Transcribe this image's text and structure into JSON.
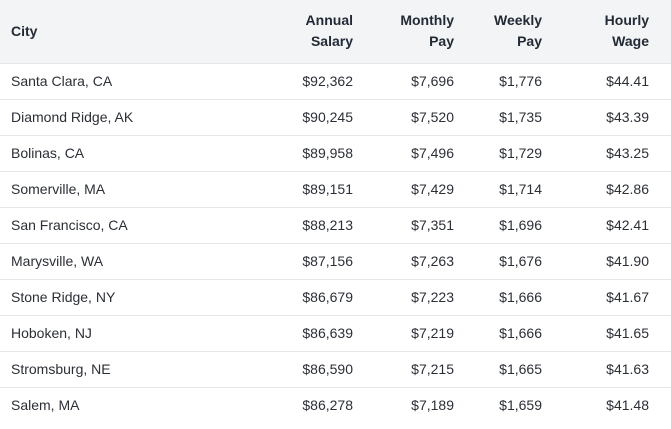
{
  "table": {
    "headers": {
      "city": "City",
      "annual_l1": "Annual",
      "annual_l2": "Salary",
      "monthly_l1": "Monthly",
      "monthly_l2": "Pay",
      "weekly_l1": "Weekly",
      "weekly_l2": "Pay",
      "hourly_l1": "Hourly",
      "hourly_l2": "Wage"
    },
    "rows": [
      {
        "city": "Santa Clara, CA",
        "annual": "$92,362",
        "monthly": "$7,696",
        "weekly": "$1,776",
        "hourly": "$44.41"
      },
      {
        "city": "Diamond Ridge, AK",
        "annual": "$90,245",
        "monthly": "$7,520",
        "weekly": "$1,735",
        "hourly": "$43.39"
      },
      {
        "city": "Bolinas, CA",
        "annual": "$89,958",
        "monthly": "$7,496",
        "weekly": "$1,729",
        "hourly": "$43.25"
      },
      {
        "city": "Somerville, MA",
        "annual": "$89,151",
        "monthly": "$7,429",
        "weekly": "$1,714",
        "hourly": "$42.86"
      },
      {
        "city": "San Francisco, CA",
        "annual": "$88,213",
        "monthly": "$7,351",
        "weekly": "$1,696",
        "hourly": "$42.41"
      },
      {
        "city": "Marysville, WA",
        "annual": "$87,156",
        "monthly": "$7,263",
        "weekly": "$1,676",
        "hourly": "$41.90"
      },
      {
        "city": "Stone Ridge, NY",
        "annual": "$86,679",
        "monthly": "$7,223",
        "weekly": "$1,666",
        "hourly": "$41.67"
      },
      {
        "city": "Hoboken, NJ",
        "annual": "$86,639",
        "monthly": "$7,219",
        "weekly": "$1,666",
        "hourly": "$41.65"
      },
      {
        "city": "Stromsburg, NE",
        "annual": "$86,590",
        "monthly": "$7,215",
        "weekly": "$1,665",
        "hourly": "$41.63"
      },
      {
        "city": "Salem, MA",
        "annual": "$86,278",
        "monthly": "$7,189",
        "weekly": "$1,659",
        "hourly": "$41.48"
      }
    ]
  }
}
